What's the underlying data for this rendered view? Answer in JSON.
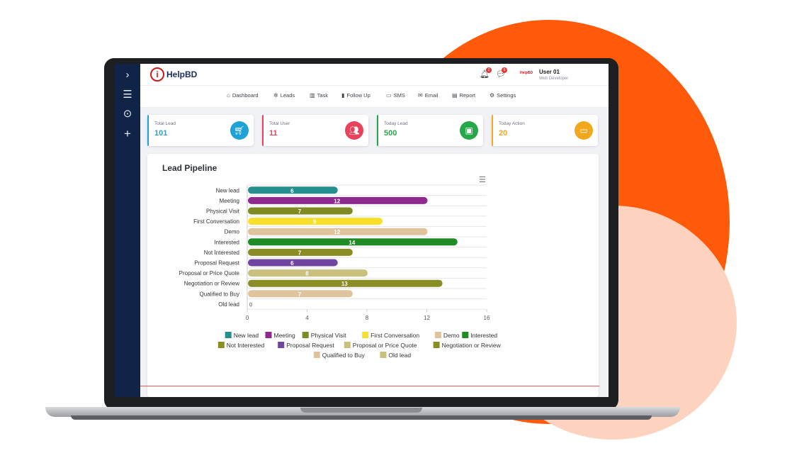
{
  "brand": {
    "logo_mark": "i",
    "logo_text": "HelpBD"
  },
  "sidebar": {
    "icons": [
      "chevron-right-icon",
      "menu-icon",
      "play-circle-icon",
      "plus-icon"
    ]
  },
  "header": {
    "notifications_count": "2",
    "messages_count": "6",
    "user_logo_text": "HelpBD",
    "user_name": "User 01",
    "user_role": "Web Developer"
  },
  "menu": {
    "items": [
      {
        "label": "Dashboard",
        "icon": "home-icon"
      },
      {
        "label": "Leads",
        "icon": "leads-icon"
      },
      {
        "label": "Task",
        "icon": "chart-icon"
      },
      {
        "label": "Follow Up",
        "icon": "bookmark-icon"
      },
      {
        "label": "SMS",
        "icon": "sms-icon"
      },
      {
        "label": "Email",
        "icon": "email-icon"
      },
      {
        "label": "Report",
        "icon": "report-icon"
      },
      {
        "label": "Settings",
        "icon": "gear-icon"
      }
    ]
  },
  "stats": [
    {
      "label": "Total Lead",
      "value": "101",
      "color": "#1fa2d6",
      "icon": "cart-icon"
    },
    {
      "label": "Total User",
      "value": "11",
      "color": "#e8435a",
      "icon": "users-icon"
    },
    {
      "label": "Today Lead",
      "value": "500",
      "color": "#26a74a",
      "icon": "browser-icon"
    },
    {
      "label": "Today Action",
      "value": "20",
      "color": "#f2a81d",
      "icon": "folder-icon"
    }
  ],
  "chart_panel": {
    "title": "Lead Pipeline"
  },
  "chart_data": {
    "type": "bar",
    "orientation": "horizontal",
    "categories": [
      "New lead",
      "Meeting",
      "Physical Visit",
      "First Conversation",
      "Demo",
      "Interested",
      "Not Interested",
      "Proposal Request",
      "Proposal or Price Quote",
      "Negotiation or Review",
      "Qualified to Buy",
      "Old lead"
    ],
    "values": [
      6,
      12,
      7,
      9,
      12,
      14,
      7,
      6,
      8,
      13,
      7,
      0
    ],
    "colors": [
      "#258f8f",
      "#8e2a8e",
      "#7f8a23",
      "#f7df2a",
      "#dfc39c",
      "#1e8b25",
      "#8a8c24",
      "#6f45a0",
      "#c9c07d",
      "#8a8c24",
      "#dfc39c",
      "#c9c07d"
    ],
    "xlim": [
      0,
      16
    ],
    "xticks": [
      "0",
      "4",
      "8",
      "12",
      "16"
    ],
    "grid": true,
    "legend_position": "bottom"
  }
}
